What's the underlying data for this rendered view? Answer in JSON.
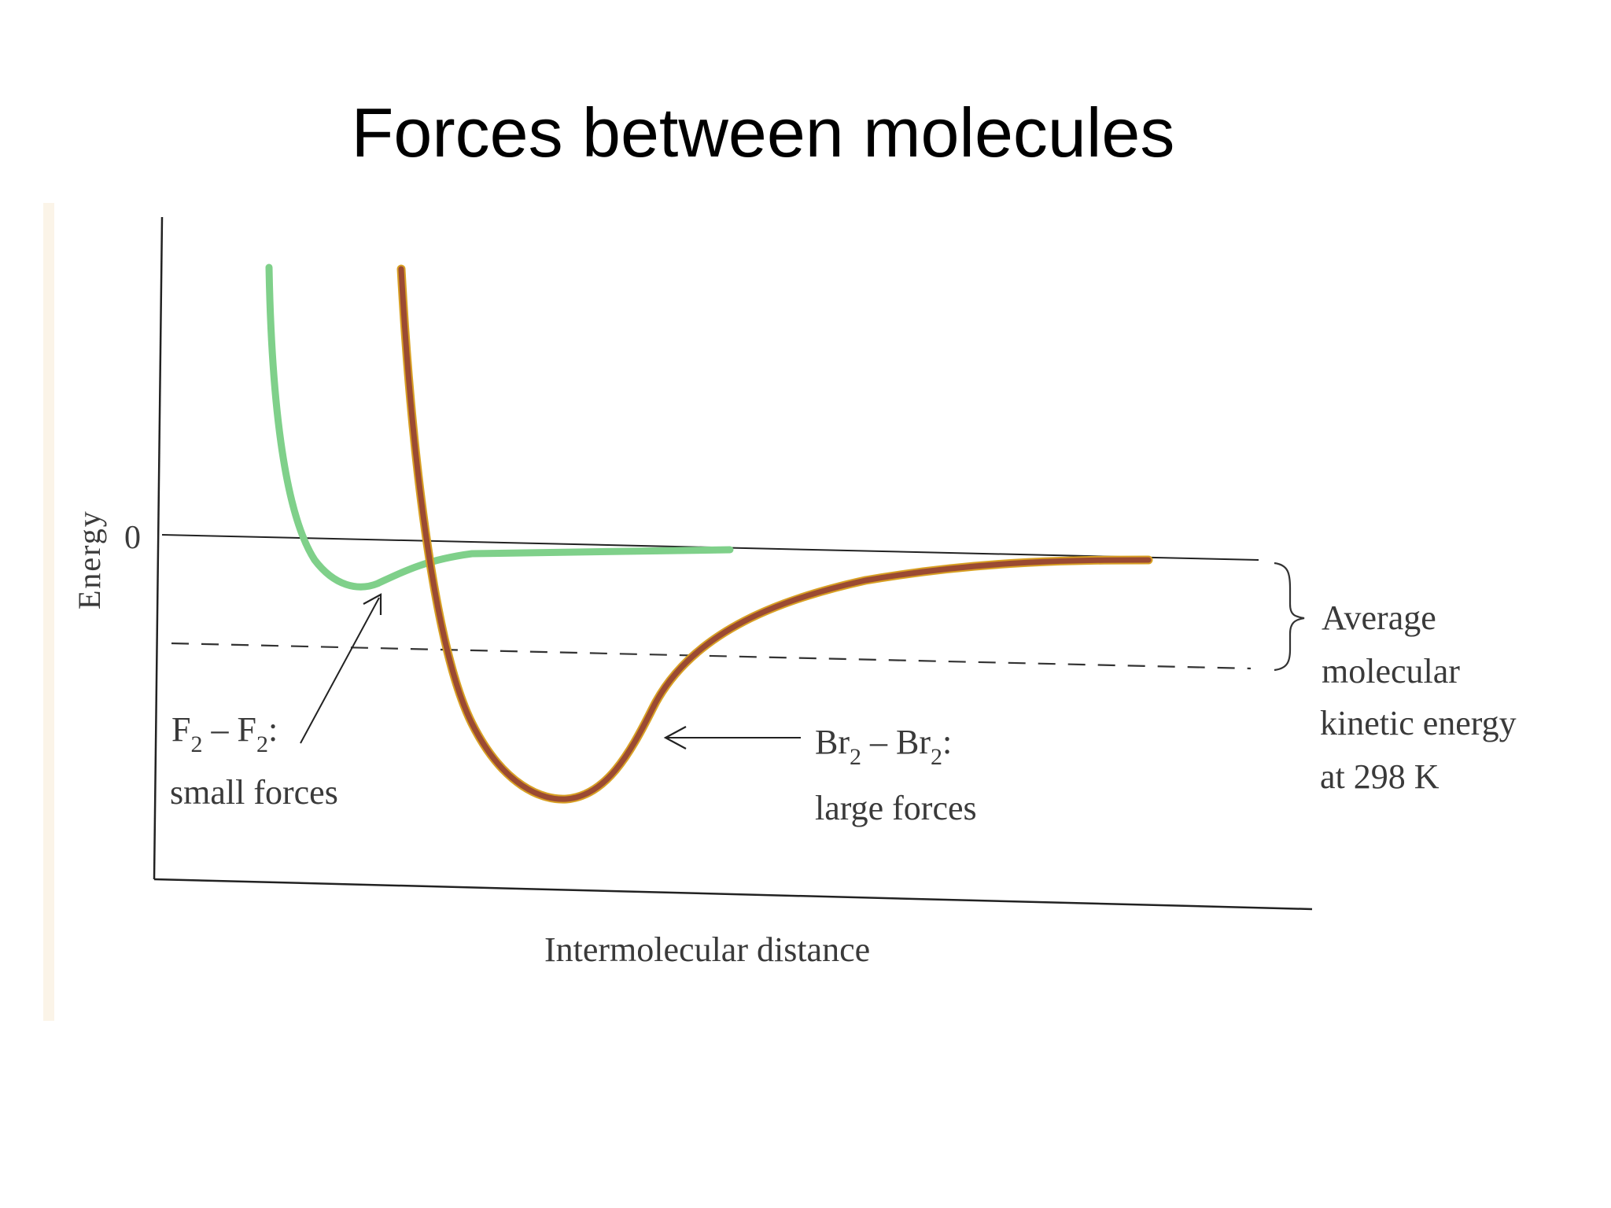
{
  "slide": {
    "title": "Forces between molecules"
  },
  "diagram": {
    "y_axis_label": "Energy",
    "zero_label": "0",
    "x_axis_label": "Intermolecular distance",
    "f2": {
      "label_main": "F",
      "label_sub": "2",
      "label_dash": " – ",
      "label_main2": "F",
      "label_sub2": "2",
      "label_colon": ":",
      "description": "small forces",
      "color": "#7fd08a"
    },
    "br2": {
      "label_main": "Br",
      "label_sub": "2",
      "label_dash": " – ",
      "label_main2": "Br",
      "label_sub2": "2",
      "label_colon": ":",
      "description": "large forces",
      "color": "#9b4a32",
      "edge_color": "#d8a024"
    },
    "kinetic_energy": {
      "line1": "Average",
      "line2": "molecular",
      "line3": "kinetic energy",
      "line4": "at 298 K"
    },
    "axis_color": "#222222",
    "text_color": "#3a3a3a"
  }
}
